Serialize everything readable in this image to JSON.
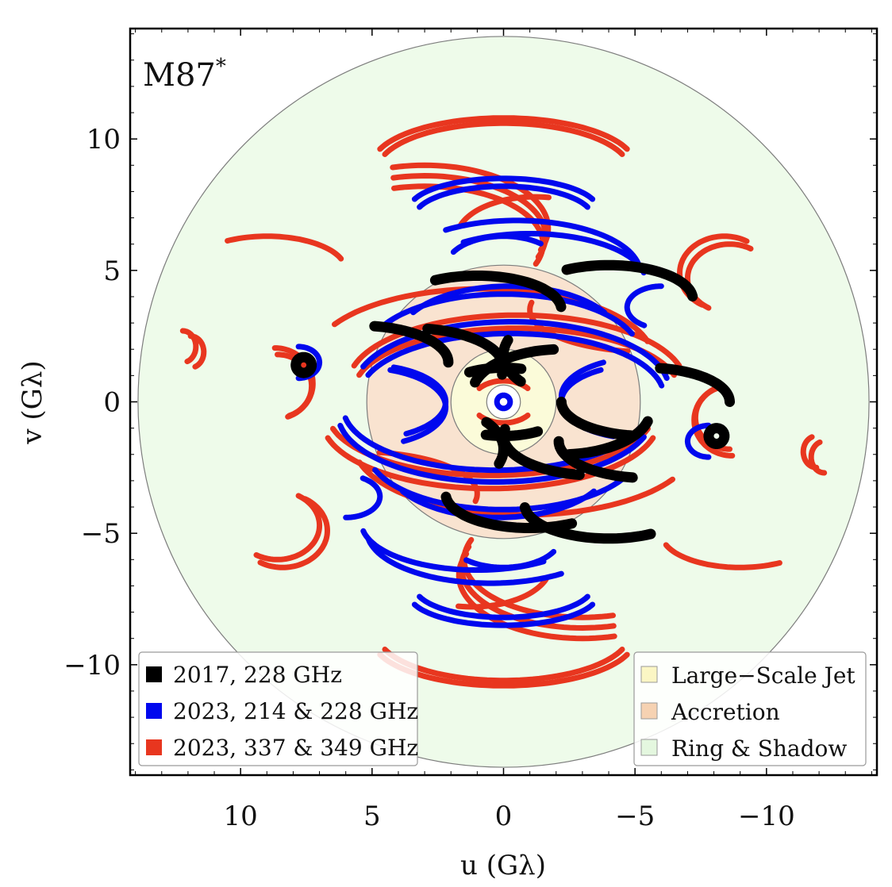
{
  "chart_data": {
    "type": "scatter",
    "title": "M87",
    "title_superscript": "*",
    "xlabel": "u (Gλ)",
    "ylabel": "v (Gλ)",
    "xlim": [
      14.2,
      -14.2
    ],
    "ylim": [
      -14.2,
      14.2
    ],
    "x_ticks": [
      10,
      5,
      0,
      -5,
      -10
    ],
    "x_tick_labels": [
      "10",
      "5",
      "0",
      "−5",
      "−10"
    ],
    "y_ticks": [
      10,
      5,
      0,
      -5,
      -10
    ],
    "y_tick_labels": [
      "10",
      "5",
      "0",
      "−5",
      "−10"
    ],
    "regions": [
      {
        "name": "Ring & Shadow",
        "r_inner": 0.4,
        "r_outer": 13.9,
        "color": "#eefbea"
      },
      {
        "name": "Accretion",
        "r_inner": 2.0,
        "r_outer": 5.2,
        "color": "#f9e3d0"
      },
      {
        "name": "Large−Scale Jet",
        "r_inner": 0.4,
        "r_outer": 2.0,
        "color": "#fbfbd9"
      }
    ],
    "region_legend": [
      "Large−Scale Jet",
      "Accretion",
      "Ring & Shadow"
    ],
    "series_legend": [
      "2017, 228 GHz",
      "2023, 214 & 228 GHz",
      "2023, 337 & 349 GHz"
    ],
    "series": [
      {
        "name": "2017, 228 GHz",
        "color": "#000000",
        "width": 13,
        "tracks": [
          {
            "cx": -5.4,
            "cy": 0.0,
            "rx": 3.2,
            "ry": 1.3,
            "a0": 100,
            "a1": 180
          },
          {
            "cx": -5.4,
            "cy": 0.0,
            "rx": 3.2,
            "ry": 1.3,
            "a0": -80,
            "a1": 0
          },
          {
            "cx": -2.2,
            "cy": 0.3,
            "rx": 3.4,
            "ry": 1.7,
            "a0": 15,
            "a1": 85
          },
          {
            "cx": -2.2,
            "cy": -0.3,
            "rx": 3.4,
            "ry": 1.7,
            "a0": 195,
            "a1": 265
          },
          {
            "cx": -4.0,
            "cy": 3.9,
            "rx": 3.2,
            "ry": 1.3,
            "a0": 60,
            "a1": 175
          },
          {
            "cx": -4.0,
            "cy": -3.9,
            "rx": 3.2,
            "ry": 1.3,
            "a0": 240,
            "a1": 355
          },
          {
            "cx": 1.0,
            "cy": 3.5,
            "rx": 3.2,
            "ry": 1.3,
            "a0": 60,
            "a1": 175
          },
          {
            "cx": -1.0,
            "cy": -3.5,
            "rx": 3.2,
            "ry": 1.3,
            "a0": 240,
            "a1": 355
          },
          {
            "cx": 3.5,
            "cy": 1.3,
            "rx": 3.5,
            "ry": 1.5,
            "a0": 100,
            "a1": 190
          },
          {
            "cx": -3.5,
            "cy": -1.3,
            "rx": 3.5,
            "ry": 1.5,
            "a0": 280,
            "a1": 370
          },
          {
            "cx": 5.5,
            "cy": 1.5,
            "rx": 3.4,
            "ry": 1.4,
            "a0": 100,
            "a1": 180
          },
          {
            "cx": -5.5,
            "cy": -1.5,
            "rx": 3.4,
            "ry": 1.4,
            "a0": 280,
            "a1": 360
          },
          {
            "cx": 0.0,
            "cy": 0.0,
            "rx": 2.6,
            "ry": 1.3,
            "a0": 60,
            "a1": 105
          },
          {
            "cx": 0.0,
            "cy": 0.0,
            "rx": 2.6,
            "ry": 1.3,
            "a0": 240,
            "a1": 285
          },
          {
            "cx": 2.8,
            "cy": -1.8,
            "rx": 2.8,
            "ry": 1.6,
            "a0": 140,
            "a1": 200
          },
          {
            "cx": -2.8,
            "cy": 1.8,
            "rx": 2.8,
            "ry": 1.6,
            "a0": 320,
            "a1": 380
          },
          {
            "cx": 7.6,
            "cy": 1.4,
            "rx": 0.3,
            "ry": 0.3,
            "a0": 0,
            "a1": 360
          },
          {
            "cx": -8.1,
            "cy": -1.3,
            "rx": 0.3,
            "ry": 0.3,
            "a0": 0,
            "a1": 360
          }
        ]
      },
      {
        "name": "2023, 214 & 228 GHz",
        "color": "#0008ee",
        "width": 7,
        "tracks": [
          {
            "cx": -0.3,
            "cy": 0.2,
            "rx": 5.8,
            "ry": 2.4,
            "a0": 20,
            "a1": 170
          },
          {
            "cx": 0.3,
            "cy": -0.2,
            "rx": 5.8,
            "ry": 2.4,
            "a0": 200,
            "a1": 350
          },
          {
            "cx": -0.3,
            "cy": 0.45,
            "rx": 6.0,
            "ry": 2.6,
            "a0": 20,
            "a1": 170
          },
          {
            "cx": 0.3,
            "cy": -0.45,
            "rx": 6.0,
            "ry": 2.6,
            "a0": 200,
            "a1": 350
          },
          {
            "cx": 0.0,
            "cy": 1.8,
            "rx": 5.2,
            "ry": 2.3,
            "a0": 30,
            "a1": 160
          },
          {
            "cx": 0.0,
            "cy": -1.8,
            "rx": 5.2,
            "ry": 2.3,
            "a0": 210,
            "a1": 340
          },
          {
            "cx": -0.2,
            "cy": 2.4,
            "rx": 4.2,
            "ry": 2.0,
            "a0": 30,
            "a1": 150
          },
          {
            "cx": 0.2,
            "cy": -2.4,
            "rx": 4.2,
            "ry": 2.0,
            "a0": 210,
            "a1": 330
          },
          {
            "cx": -1.0,
            "cy": 4.6,
            "rx": 4.4,
            "ry": 1.8,
            "a0": 55,
            "a1": 170
          },
          {
            "cx": 1.0,
            "cy": -4.6,
            "rx": 4.4,
            "ry": 1.8,
            "a0": 235,
            "a1": 350
          },
          {
            "cx": -0.5,
            "cy": 4.9,
            "rx": 4.7,
            "ry": 2.0,
            "a0": 55,
            "a1": 170
          },
          {
            "cx": 0.5,
            "cy": -4.9,
            "rx": 4.7,
            "ry": 2.0,
            "a0": 235,
            "a1": 350
          },
          {
            "cx": 0.0,
            "cy": 5.1,
            "rx": 2.2,
            "ry": 1.2,
            "a0": 30,
            "a1": 130
          },
          {
            "cx": 0.0,
            "cy": -5.1,
            "rx": 2.2,
            "ry": 1.2,
            "a0": 210,
            "a1": 310
          },
          {
            "cx": 0.0,
            "cy": -7.0,
            "rx": 3.4,
            "ry": 1.2,
            "a0": 200,
            "a1": 340
          },
          {
            "cx": 0.0,
            "cy": -7.3,
            "rx": 3.6,
            "ry": 1.2,
            "a0": 200,
            "a1": 340
          },
          {
            "cx": 0.0,
            "cy": 7.0,
            "rx": 3.4,
            "ry": 1.2,
            "a0": 20,
            "a1": 160
          },
          {
            "cx": 0.0,
            "cy": 7.3,
            "rx": 3.6,
            "ry": 1.2,
            "a0": 20,
            "a1": 160
          },
          {
            "cx": -5.2,
            "cy": 0.0,
            "rx": 3.0,
            "ry": 1.4,
            "a0": -70,
            "a1": 60
          },
          {
            "cx": -5.4,
            "cy": 0.2,
            "rx": 3.2,
            "ry": 1.5,
            "a0": -70,
            "a1": 60
          },
          {
            "cx": 5.2,
            "cy": 0.0,
            "rx": 3.0,
            "ry": 1.4,
            "a0": 110,
            "a1": 240
          },
          {
            "cx": 5.4,
            "cy": -0.2,
            "rx": 3.2,
            "ry": 1.5,
            "a0": 110,
            "a1": 240
          },
          {
            "cx": -6.0,
            "cy": 3.6,
            "rx": 1.3,
            "ry": 0.8,
            "a0": -60,
            "a1": 90
          },
          {
            "cx": 6.0,
            "cy": -3.6,
            "rx": 1.3,
            "ry": 0.8,
            "a0": 120,
            "a1": 270
          },
          {
            "cx": 7.8,
            "cy": 1.5,
            "rx": 0.8,
            "ry": 0.6,
            "a0": 90,
            "a1": 270
          },
          {
            "cx": -7.8,
            "cy": -1.5,
            "rx": 0.8,
            "ry": 0.6,
            "a0": 270,
            "a1": 450
          },
          {
            "cx": 0.0,
            "cy": 0.0,
            "rx": 0.25,
            "ry": 0.25,
            "a0": 0,
            "a1": 360
          }
        ]
      },
      {
        "name": "2023, 337 & 349 GHz",
        "color": "#e8361f",
        "width": 7,
        "tracks": [
          {
            "cx": -0.5,
            "cy": 0.4,
            "rx": 6.2,
            "ry": 2.4,
            "a0": 15,
            "a1": 165
          },
          {
            "cx": 0.5,
            "cy": -0.4,
            "rx": 6.2,
            "ry": 2.4,
            "a0": 195,
            "a1": 345
          },
          {
            "cx": -0.5,
            "cy": 0.7,
            "rx": 6.4,
            "ry": 2.6,
            "a0": 15,
            "a1": 165
          },
          {
            "cx": 0.5,
            "cy": -0.7,
            "rx": 6.4,
            "ry": 2.6,
            "a0": 195,
            "a1": 345
          },
          {
            "cx": 0.8,
            "cy": 1.6,
            "rx": 6.5,
            "ry": 2.7,
            "a0": 30,
            "a1": 165
          },
          {
            "cx": -0.8,
            "cy": -1.6,
            "rx": 6.5,
            "ry": 2.7,
            "a0": 210,
            "a1": 345
          },
          {
            "cx": 0.0,
            "cy": 0.0,
            "rx": 1.2,
            "ry": 0.8,
            "a0": 40,
            "a1": 140
          },
          {
            "cx": 0.0,
            "cy": 0.0,
            "rx": 1.2,
            "ry": 0.8,
            "a0": 220,
            "a1": 320
          },
          {
            "cx": 0.0,
            "cy": 8.8,
            "rx": 4.8,
            "ry": 1.8,
            "a0": 20,
            "a1": 160
          },
          {
            "cx": 0.0,
            "cy": 9.0,
            "rx": 5.0,
            "ry": 1.8,
            "a0": 20,
            "a1": 160
          },
          {
            "cx": 0.0,
            "cy": -8.8,
            "rx": 4.8,
            "ry": 1.8,
            "a0": 200,
            "a1": 340
          },
          {
            "cx": 0.0,
            "cy": -9.0,
            "rx": 5.0,
            "ry": 1.8,
            "a0": 200,
            "a1": 340
          },
          {
            "cx": 3.0,
            "cy": 6.0,
            "rx": 4.5,
            "ry": 2.2,
            "a0": 75,
            "a1": 200
          },
          {
            "cx": 3.0,
            "cy": 6.3,
            "rx": 4.6,
            "ry": 2.3,
            "a0": 75,
            "a1": 200
          },
          {
            "cx": 3.0,
            "cy": 6.6,
            "rx": 4.7,
            "ry": 2.4,
            "a0": 75,
            "a1": 200
          },
          {
            "cx": -3.0,
            "cy": -6.0,
            "rx": 4.5,
            "ry": 2.2,
            "a0": 255,
            "a1": 380
          },
          {
            "cx": -3.0,
            "cy": -6.3,
            "rx": 4.6,
            "ry": 2.3,
            "a0": 255,
            "a1": 380
          },
          {
            "cx": -3.0,
            "cy": -6.6,
            "rx": 4.7,
            "ry": 2.4,
            "a0": 255,
            "a1": 380
          },
          {
            "cx": -1.2,
            "cy": 6.2,
            "rx": 3.0,
            "ry": 1.6,
            "a0": 20,
            "a1": 100
          },
          {
            "cx": 1.2,
            "cy": -6.2,
            "rx": 3.0,
            "ry": 1.6,
            "a0": 200,
            "a1": 280
          },
          {
            "cx": -8.6,
            "cy": 4.7,
            "rx": 1.6,
            "ry": 1.3,
            "a0": -60,
            "a1": 120
          },
          {
            "cx": -8.4,
            "cy": 4.9,
            "rx": 1.7,
            "ry": 1.4,
            "a0": -60,
            "a1": 120
          },
          {
            "cx": 8.6,
            "cy": -4.7,
            "rx": 1.6,
            "ry": 1.3,
            "a0": 120,
            "a1": 300
          },
          {
            "cx": 8.4,
            "cy": -4.9,
            "rx": 1.7,
            "ry": 1.4,
            "a0": 120,
            "a1": 300
          },
          {
            "cx": 9.0,
            "cy": 5.0,
            "rx": 3.0,
            "ry": 1.3,
            "a0": 60,
            "a1": 160
          },
          {
            "cx": -9.0,
            "cy": -5.0,
            "rx": 3.0,
            "ry": 1.3,
            "a0": 240,
            "a1": 340
          },
          {
            "cx": 8.6,
            "cy": 0.6,
            "rx": 1.3,
            "ry": 1.2,
            "a0": 90,
            "a1": 250
          },
          {
            "cx": 8.7,
            "cy": 0.7,
            "rx": 1.45,
            "ry": 1.35,
            "a0": 90,
            "a1": 250
          },
          {
            "cx": -8.6,
            "cy": -0.6,
            "rx": 1.3,
            "ry": 1.2,
            "a0": 270,
            "a1": 430
          },
          {
            "cx": -8.7,
            "cy": -0.7,
            "rx": 1.45,
            "ry": 1.35,
            "a0": 270,
            "a1": 430
          },
          {
            "cx": 11.9,
            "cy": 1.9,
            "rx": 0.5,
            "ry": 0.6,
            "a0": 90,
            "a1": 250
          },
          {
            "cx": 12.2,
            "cy": 2.1,
            "rx": 0.5,
            "ry": 0.6,
            "a0": 90,
            "a1": 250
          },
          {
            "cx": -11.9,
            "cy": -1.9,
            "rx": 0.5,
            "ry": 0.6,
            "a0": 270,
            "a1": 430
          },
          {
            "cx": -12.2,
            "cy": -2.1,
            "rx": 0.5,
            "ry": 0.6,
            "a0": 270,
            "a1": 430
          },
          {
            "cx": 5.5,
            "cy": -3.5,
            "rx": 4.5,
            "ry": 1.6,
            "a0": 100,
            "a1": 190
          },
          {
            "cx": -5.5,
            "cy": 3.5,
            "rx": 4.5,
            "ry": 1.6,
            "a0": 280,
            "a1": 370
          }
        ]
      }
    ]
  }
}
